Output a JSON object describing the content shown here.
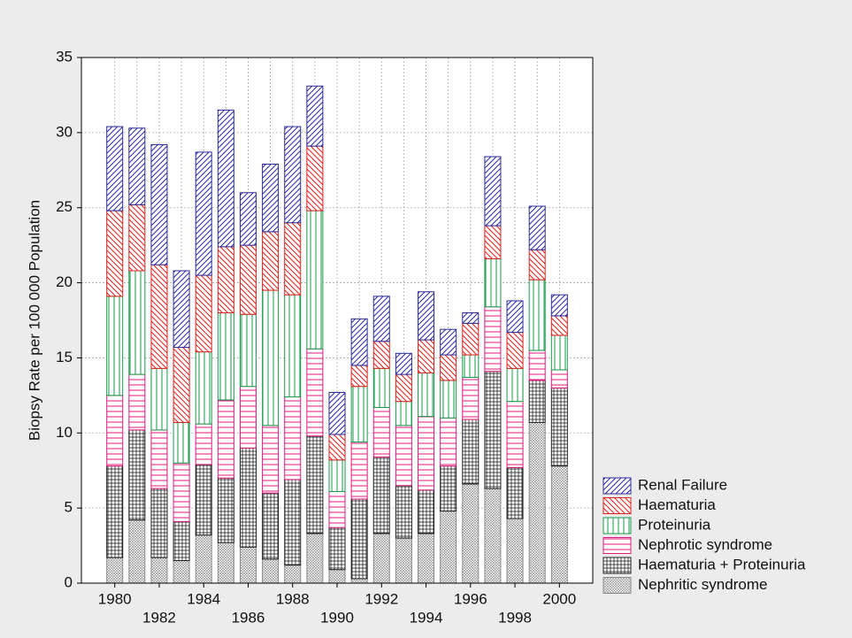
{
  "chart_data": {
    "type": "stacked-bar",
    "y_label": "Biopsy Rate per 100 000 Population",
    "categories": [
      "1980",
      null,
      "1982",
      null,
      "1984",
      null,
      "1986",
      null,
      "1988",
      null,
      "1990",
      null,
      "1992",
      null,
      "1994",
      null,
      "1996",
      null,
      "1998",
      null,
      "2000"
    ],
    "ylim": [
      0,
      35
    ],
    "yticks": [
      0,
      5,
      10,
      15,
      20,
      25,
      30,
      35
    ],
    "grid": true,
    "legend": "bottom-right",
    "series": [
      {
        "name": "Nephritic syndrome",
        "color": "#8a8a8a",
        "pattern": "crosshatch-fine",
        "values": [
          1.7,
          4.2,
          1.7,
          1.5,
          3.2,
          2.7,
          2.4,
          1.6,
          1.2,
          3.3,
          0.9,
          0.3,
          3.3,
          3.0,
          3.3,
          4.8,
          6.6,
          6.3,
          4.3,
          10.7,
          7.8
        ]
      },
      {
        "name": "Haematuria + Proteinuria",
        "color": "#1e1e1e",
        "pattern": "grid",
        "values": [
          6.1,
          6.0,
          4.6,
          2.6,
          4.7,
          4.3,
          6.6,
          4.4,
          5.7,
          6.5,
          2.8,
          5.3,
          5.1,
          3.5,
          2.9,
          3.0,
          4.3,
          7.8,
          3.4,
          2.8,
          5.2
        ]
      },
      {
        "name": "Nephrotic syndrome",
        "color": "#e0197d",
        "pattern": "horizontal",
        "values": [
          4.7,
          3.7,
          3.9,
          3.9,
          2.7,
          5.2,
          4.1,
          4.5,
          5.5,
          5.8,
          2.4,
          3.8,
          3.3,
          4.0,
          4.9,
          3.2,
          2.8,
          4.3,
          4.4,
          2.0,
          1.2
        ]
      },
      {
        "name": "Proteinuria",
        "color": "#1a9a4a",
        "pattern": "vertical",
        "values": [
          6.6,
          6.9,
          4.1,
          2.7,
          4.8,
          5.8,
          4.8,
          9.0,
          6.8,
          9.2,
          2.1,
          3.7,
          2.6,
          1.6,
          2.9,
          2.5,
          1.5,
          3.2,
          2.2,
          4.7,
          2.3
        ]
      },
      {
        "name": "Haematuria",
        "color": "#e0201b",
        "pattern": "backslash",
        "values": [
          5.7,
          4.4,
          6.9,
          5.0,
          5.1,
          4.4,
          4.6,
          3.9,
          4.8,
          4.3,
          1.7,
          1.4,
          1.8,
          1.8,
          2.2,
          1.7,
          2.1,
          2.2,
          2.4,
          2.0,
          1.3
        ]
      },
      {
        "name": "Renal Failure",
        "color": "#2b2b9a",
        "pattern": "slash",
        "values": [
          5.6,
          5.1,
          8.0,
          5.1,
          8.2,
          9.1,
          3.5,
          4.5,
          6.4,
          4.0,
          2.8,
          3.1,
          3.0,
          1.4,
          3.2,
          1.7,
          0.7,
          4.6,
          2.1,
          2.9,
          1.4
        ]
      }
    ]
  }
}
